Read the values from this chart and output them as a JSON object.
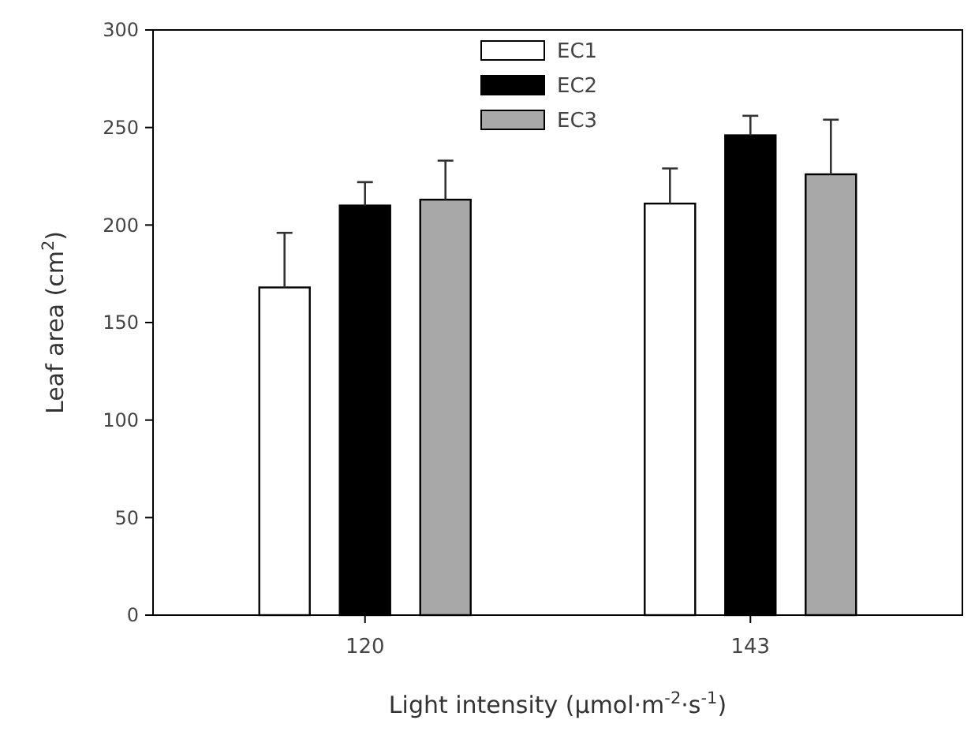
{
  "chart_data": {
    "type": "bar",
    "xlabel": "Light intensity (μmol·m$^{-2}$·s$^{-1}$)",
    "ylabel": "Leaf area (cm$^{2}$)",
    "categories": [
      "120",
      "143"
    ],
    "series": [
      {
        "name": "EC1",
        "color": "#ffffff",
        "values": [
          168,
          211
        ],
        "errors": [
          [
            168,
            196
          ],
          [
            211,
            229
          ]
        ]
      },
      {
        "name": "EC2",
        "color": "#000000",
        "values": [
          210,
          246
        ],
        "errors": [
          [
            210,
            222
          ],
          [
            246,
            256
          ]
        ]
      },
      {
        "name": "EC3",
        "color": "#a8a8a8",
        "values": [
          213,
          226
        ],
        "errors": [
          [
            213,
            233
          ],
          [
            226,
            254
          ]
        ]
      }
    ],
    "ylim": [
      0,
      300
    ],
    "yticks": [
      0,
      50,
      100,
      150,
      200,
      250,
      300
    ],
    "grid": false,
    "legend": "top"
  }
}
